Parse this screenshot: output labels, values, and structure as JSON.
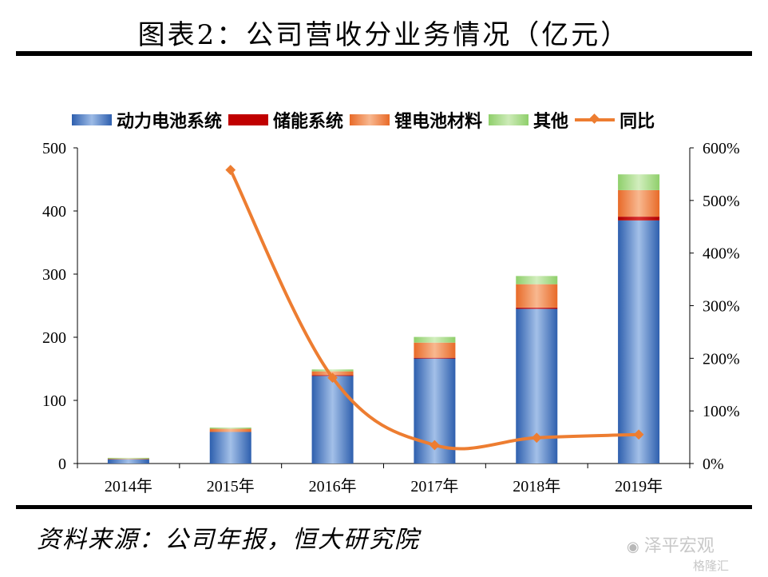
{
  "title": "图表2：公司营收分业务情况（亿元）",
  "source": "资料来源：公司年报，恒大研究院",
  "watermark": {
    "brand": "泽平宏观",
    "logo_text": "格隆汇"
  },
  "colors": {
    "power_battery": "#4a7cc6",
    "storage": "#c00000",
    "lithium_materials": "#f08040",
    "other": "#a9d98a",
    "yoy": "#ed7d31"
  },
  "chart_data": {
    "type": "bar",
    "stacked": true,
    "categories": [
      "2014年",
      "2015年",
      "2016年",
      "2017年",
      "2018年",
      "2019年"
    ],
    "series": [
      {
        "name": "动力电池系统",
        "type": "bar",
        "values": [
          7,
          50,
          139,
          167,
          245,
          385
        ]
      },
      {
        "name": "储能系统",
        "type": "bar",
        "values": [
          0,
          0,
          1,
          0.5,
          2,
          6
        ]
      },
      {
        "name": "锂电池材料",
        "type": "bar",
        "values": [
          1,
          5,
          6,
          24,
          37,
          42
        ]
      },
      {
        "name": "其他",
        "type": "bar",
        "values": [
          1,
          2,
          3,
          9,
          13,
          25
        ]
      },
      {
        "name": "同比",
        "type": "line",
        "axis": "right",
        "values": [
          null,
          558,
          163,
          35,
          49,
          55
        ]
      }
    ],
    "y_left": {
      "ylim": [
        0,
        500
      ],
      "ticks": [
        "0",
        "100",
        "200",
        "300",
        "400",
        "500"
      ]
    },
    "y_right": {
      "ylim": [
        0,
        600
      ],
      "ticks": [
        "0%",
        "100%",
        "200%",
        "300%",
        "400%",
        "500%",
        "600%"
      ]
    },
    "legend": "top"
  }
}
